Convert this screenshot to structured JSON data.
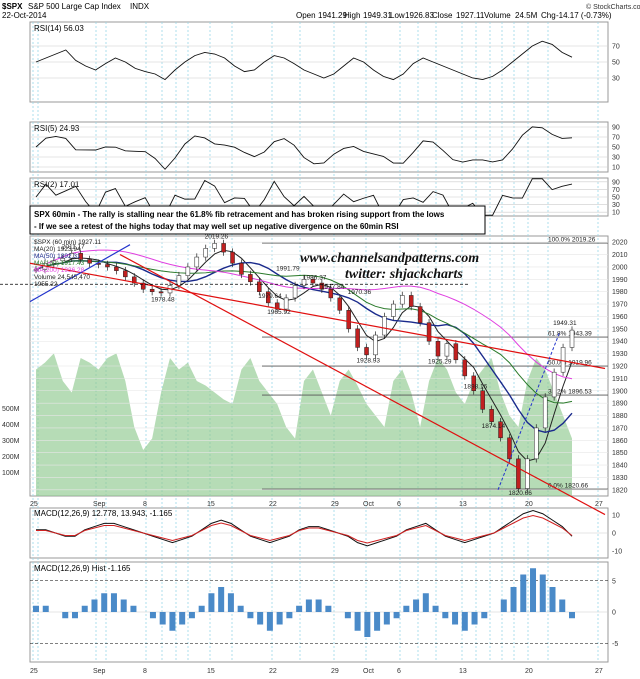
{
  "header": {
    "symbol": "$SPX",
    "name": "S&P 500 Large Cap Index",
    "exchange": "INDX",
    "date": "22-Oct-2014",
    "open_label": "Open",
    "open": "1941.29",
    "high_label": "High",
    "high": "1949.31",
    "low_label": "Low",
    "low": "1926.83",
    "close_label": "Close",
    "close": "1927.11",
    "volume_label": "Volume",
    "volume": "24.5M",
    "chg_label": "Chg",
    "chg": "-14.17 (-0.73%)",
    "credit": "© StockCharts.com"
  },
  "annotation": {
    "line1": "SPX 60min - The rally is stalling near the 61.8% fib retracement and has broken rising support from the lows",
    "line2": "- If we see a retest of the highs today that may well set up negative divergence on the 60min RSI"
  },
  "watermark": {
    "line1": "www.channelsandpatterns.com",
    "line2": "twitter: shjackcharts"
  },
  "legend": {
    "spx": "$SPX (60 min) 1927.11",
    "ma20": "MA(20) 1923.94",
    "ma50": "MA(50) 1892.31",
    "ma100": "MA(100) 1917.43",
    "ma200": "MA(200) 1936.28",
    "vol": "Volume 24,545,470",
    "price": "1955.22"
  },
  "rsi14_label": "RSI(14) 56.03",
  "rsi5_label": "RSI(5) 24.93",
  "rsi2_label": "RSI(2) 17.01",
  "macd_label": "MACD(12,26,9) 12.778, 13.943, -1.165",
  "hist_label": "MACD(12,26,9) Hist -1.165",
  "colors": {
    "ma20": "#222222",
    "ma50": "#1a2a8c",
    "ma100": "#2a7a2a",
    "ma200": "#e040e0",
    "volume": "#8fc98f",
    "trend_red": "#e01010",
    "trend_blue": "#2233cc",
    "rsi_fill": "#4a7a4a",
    "rsi_neg_fill": "#8a4a4a",
    "macd_hist": "#4a8ac8"
  },
  "chart_data": {
    "type": "line",
    "xaxis_ticks": [
      "25",
      "Sep",
      "8",
      "15",
      "22",
      "29",
      "Oct",
      "6",
      "13",
      "20",
      "27"
    ],
    "price_axis": [
      "2020",
      "2010",
      "2000",
      "1990",
      "1980",
      "1970",
      "1960",
      "1950",
      "1940",
      "1930",
      "1920",
      "1910",
      "1900",
      "1890",
      "1880",
      "1870",
      "1860",
      "1850",
      "1840",
      "1830",
      "1820"
    ],
    "ylim": [
      1815,
      2025
    ],
    "rsi14_axis": [
      "70",
      "50",
      "30"
    ],
    "rsi5_axis": [
      "90",
      "70",
      "50",
      "30",
      "10"
    ],
    "rsi2_axis": [
      "90",
      "70",
      "50",
      "30",
      "10"
    ],
    "macd_axis": [
      "10",
      "0",
      "-10"
    ],
    "hist_axis": [
      "5",
      "0",
      "-5"
    ],
    "volume_axis": [
      "500M",
      "400M",
      "300M",
      "200M",
      "100M"
    ],
    "fib_labels": [
      "100.0% 2019.26",
      "61.8% 1943.39",
      "50.0% 1919.96",
      "38.2% 1896.53",
      "0.0% 1820.66"
    ],
    "price_labels": [
      "2011.17",
      "2019.26",
      "1991.79",
      "1986.37",
      "1978.48",
      "1979.64",
      "1965.92",
      "1977.84",
      "1970.36",
      "1928.93",
      "1925.29",
      "1898.16",
      "1874.14",
      "1820.66",
      "1949.31"
    ],
    "series": [
      {
        "name": "SPX",
        "x": [
          0,
          1,
          2,
          3,
          4,
          5,
          6,
          7,
          8,
          9,
          10,
          11,
          12,
          13,
          14,
          15,
          16,
          17,
          18,
          19,
          20,
          21,
          22,
          23,
          24,
          25,
          26,
          27,
          28,
          29,
          30,
          31,
          32,
          33,
          34,
          35,
          36,
          37,
          38,
          39,
          40,
          41,
          42,
          43,
          44,
          45,
          46,
          47,
          48,
          49,
          50,
          51,
          52,
          53,
          54,
          55,
          56,
          57,
          58,
          59,
          60
        ],
        "values": [
          1998,
          2003,
          2005,
          2007,
          2011,
          2006,
          2003,
          2002,
          2000,
          1997,
          1992,
          1987,
          1982,
          1980,
          1979,
          1985,
          1993,
          2000,
          2008,
          2015,
          2019,
          2012,
          2003,
          1994,
          1988,
          1980,
          1971,
          1966,
          1975,
          1985,
          1990,
          1987,
          1982,
          1975,
          1965,
          1950,
          1935,
          1929,
          1945,
          1960,
          1970,
          1977,
          1968,
          1955,
          1940,
          1928,
          1938,
          1925,
          1912,
          1900,
          1885,
          1875,
          1862,
          1845,
          1821,
          1845,
          1870,
          1895,
          1915,
          1935,
          1949
        ]
      }
    ],
    "rsi14": [
      50,
      55,
      60,
      65,
      52,
      45,
      40,
      48,
      55,
      50,
      42,
      38,
      35,
      28,
      40,
      50,
      58,
      62,
      60,
      55,
      45,
      38,
      40,
      50,
      58,
      55,
      48,
      40,
      35,
      30,
      35,
      45,
      55,
      50,
      40,
      32,
      28,
      35,
      48,
      55,
      50,
      45,
      40,
      35,
      30,
      28,
      32,
      40,
      50,
      60,
      70,
      76,
      72,
      62,
      56
    ],
    "macd_hist": [
      1,
      1,
      0,
      -1,
      -1,
      1,
      2,
      3,
      3,
      2,
      1,
      0,
      -1,
      -2,
      -3,
      -2,
      -1,
      1,
      3,
      4,
      3,
      1,
      -1,
      -2,
      -3,
      -2,
      -1,
      1,
      2,
      2,
      1,
      0,
      -1,
      -3,
      -4,
      -3,
      -2,
      -1,
      1,
      2,
      3,
      1,
      -1,
      -2,
      -3,
      -2,
      -1,
      0,
      2,
      4,
      6,
      7,
      6,
      4,
      2,
      -1
    ]
  }
}
